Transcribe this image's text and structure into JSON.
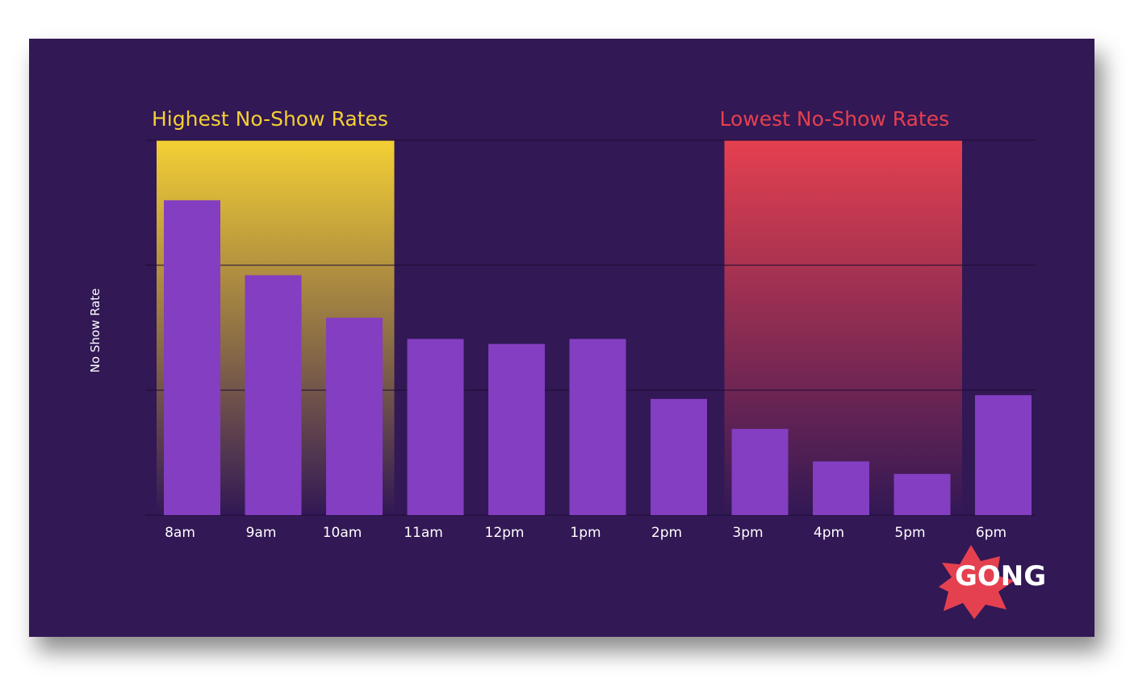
{
  "chart_data": {
    "type": "bar",
    "title": "",
    "xlabel": "",
    "ylabel": "No Show Rate",
    "categories": [
      "8am",
      "9am",
      "10am",
      "11am",
      "12pm",
      "1pm",
      "2pm",
      "3pm",
      "4pm",
      "5pm",
      "6pm"
    ],
    "values": [
      2.52,
      1.92,
      1.58,
      1.41,
      1.37,
      1.41,
      0.93,
      0.69,
      0.43,
      0.33,
      0.96
    ],
    "ylim": [
      0,
      3
    ],
    "yticks": [
      0,
      1,
      2,
      3
    ],
    "ytick_labels_shown": false,
    "grid": true,
    "bar_color": "#833ec1",
    "highlights": [
      {
        "label": "Highest No-Show Rates",
        "categories": [
          "8am",
          "9am",
          "10am"
        ],
        "color": "#f4d034"
      },
      {
        "label": "Lowest No-Show Rates",
        "categories": [
          "3pm",
          "4pm",
          "5pm"
        ],
        "color": "#e5404f"
      }
    ]
  },
  "logo": {
    "text": "GONG",
    "burst_color": "#e5404f",
    "text_color": "#ffffff"
  },
  "colors": {
    "background": "#321855",
    "grid": "#1d0c33",
    "bar": "#833ec1"
  }
}
